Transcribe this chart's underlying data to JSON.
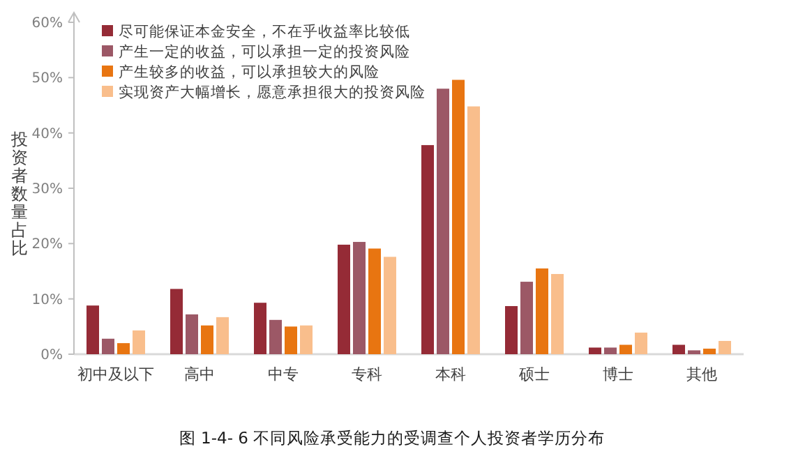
{
  "chart_data": {
    "type": "bar",
    "title": "图 1-4- 6 不同风险承受能力的受调查个人投资者学历分布",
    "ylabel": "投资者数量占比",
    "categories": [
      "初中及以下",
      "高中",
      "中专",
      "专科",
      "本科",
      "硕士",
      "博士",
      "其他"
    ],
    "series": [
      {
        "name": "尽可能保证本金安全，不在乎收益率比较低",
        "color": "#952b36",
        "values": [
          8.8,
          11.8,
          9.3,
          19.8,
          37.8,
          8.7,
          1.2,
          1.7
        ]
      },
      {
        "name": "产生一定的收益，可以承担一定的投资风险",
        "color": "#9c5866",
        "values": [
          2.8,
          7.2,
          6.2,
          20.3,
          48.0,
          13.1,
          1.2,
          0.7
        ]
      },
      {
        "name": "产生较多的收益，可以承担较大的风险",
        "color": "#e87511",
        "values": [
          2.0,
          5.2,
          5.0,
          19.1,
          49.6,
          15.5,
          1.7,
          1.0
        ]
      },
      {
        "name": "实现资产大幅增长，愿意承担很大的投资风险",
        "color": "#f9be8c",
        "values": [
          4.3,
          6.7,
          5.2,
          17.6,
          44.8,
          14.5,
          3.9,
          2.4
        ]
      }
    ],
    "ylim": [
      0,
      60
    ],
    "yticks": [
      {
        "value": 0,
        "label": "0%"
      },
      {
        "value": 10,
        "label": "10%"
      },
      {
        "value": 20,
        "label": "20%"
      },
      {
        "value": 30,
        "label": "30%"
      },
      {
        "value": 40,
        "label": "40%"
      },
      {
        "value": 50,
        "label": "50%"
      },
      {
        "value": 60,
        "label": "60%"
      }
    ],
    "legend": "top left",
    "grid": false
  }
}
